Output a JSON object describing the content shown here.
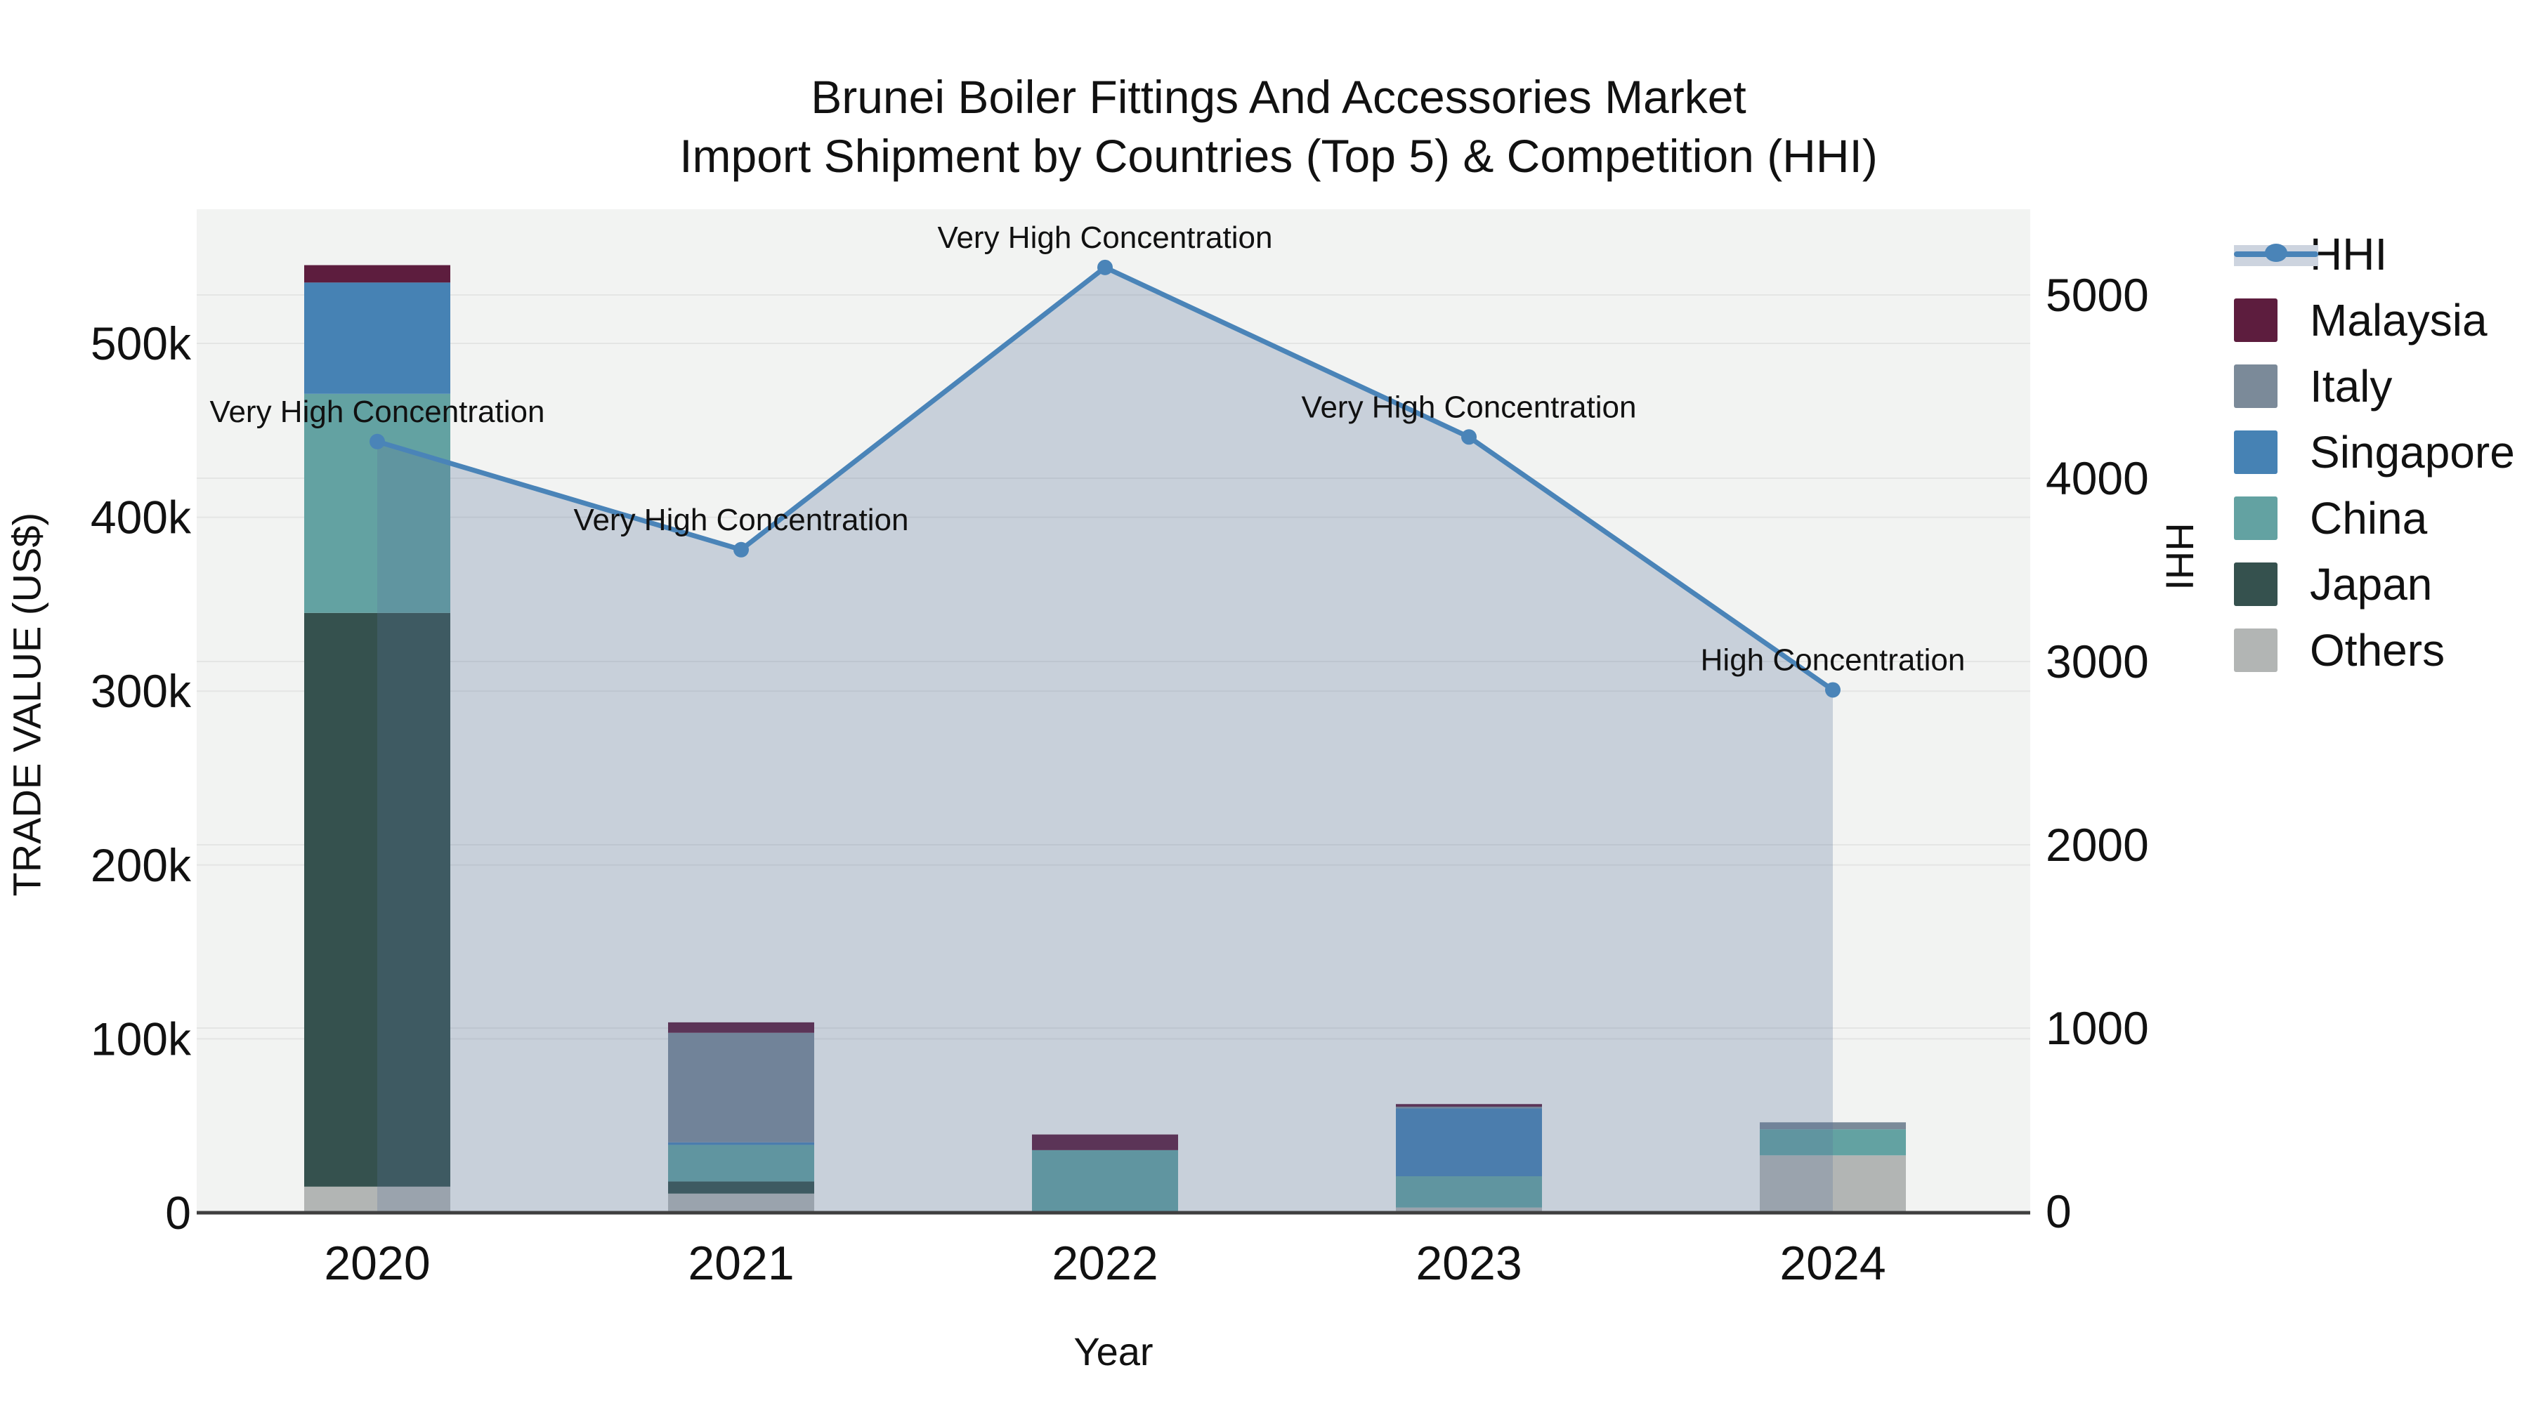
{
  "title": {
    "line1": "Brunei Boiler Fittings And Accessories Market",
    "line2": "Import Shipment by Countries (Top 5) & Competition (HHI)"
  },
  "axes": {
    "left": {
      "title": "TRADE VALUE (US$)",
      "tick_labels": [
        "0",
        "100k",
        "200k",
        "300k",
        "400k",
        "500k"
      ],
      "tick_values": [
        0,
        100000,
        200000,
        300000,
        400000,
        500000
      ]
    },
    "right": {
      "title": "HHI",
      "tick_labels": [
        "0",
        "1000",
        "2000",
        "3000",
        "4000",
        "5000"
      ],
      "tick_values": [
        0,
        1000,
        2000,
        3000,
        4000,
        5000
      ]
    },
    "x": {
      "title": "Year",
      "categories": [
        "2020",
        "2021",
        "2022",
        "2023",
        "2024"
      ]
    }
  },
  "legend": {
    "items": [
      {
        "label": "HHI",
        "type": "line",
        "color": "#4a84b8",
        "band_color": "#cdd4df"
      },
      {
        "label": "Malaysia",
        "type": "box",
        "color": "#5d1d3e"
      },
      {
        "label": "Italy",
        "type": "box",
        "color": "#7b8a99"
      },
      {
        "label": "Singapore",
        "type": "box",
        "color": "#4682b4"
      },
      {
        "label": "China",
        "type": "box",
        "color": "#63a2a2"
      },
      {
        "label": "Japan",
        "type": "box",
        "color": "#35514e"
      },
      {
        "label": "Others",
        "type": "box",
        "color": "#b2b5b4"
      }
    ]
  },
  "chart_data": {
    "type": "combo_stacked_bar_line",
    "x": [
      "2020",
      "2021",
      "2022",
      "2023",
      "2024"
    ],
    "bar_value_unit": "US$",
    "ylim_left": [
      0,
      577000
    ],
    "ylim_right": [
      0,
      5470
    ],
    "grid": true,
    "series": [
      {
        "name": "Malaysia",
        "color": "#5d1d3e",
        "values": [
          10000,
          6000,
          9000,
          1500,
          0
        ]
      },
      {
        "name": "Italy",
        "color": "#7b8a99",
        "values": [
          0,
          63000,
          0,
          1000,
          4000
        ]
      },
      {
        "name": "Singapore",
        "color": "#4682b4",
        "values": [
          64000,
          1500,
          0,
          39000,
          0
        ]
      },
      {
        "name": "China",
        "color": "#63a2a2",
        "values": [
          126000,
          21000,
          36000,
          18000,
          15000
        ]
      },
      {
        "name": "Japan",
        "color": "#35514e",
        "values": [
          330000,
          7000,
          0,
          0,
          0
        ]
      },
      {
        "name": "Others",
        "color": "#b2b5b4",
        "values": [
          15000,
          11000,
          0,
          3000,
          33000
        ]
      }
    ],
    "stack_order_bottom_to_top": [
      "Others",
      "Japan",
      "China",
      "Singapore",
      "Italy",
      "Malaysia"
    ],
    "bar_totals": [
      545000,
      109500,
      45000,
      62500,
      52000
    ],
    "hhi": {
      "name": "HHI",
      "line_color": "#4a84b8",
      "area_fill": "rgba(88,114,156,0.27)",
      "values": [
        4200,
        3610,
        5150,
        4225,
        2845
      ],
      "annotations": [
        "Very High Concentration",
        "Very High Concentration",
        "Very High Concentration",
        "Very High Concentration",
        "High Concentration"
      ]
    }
  }
}
